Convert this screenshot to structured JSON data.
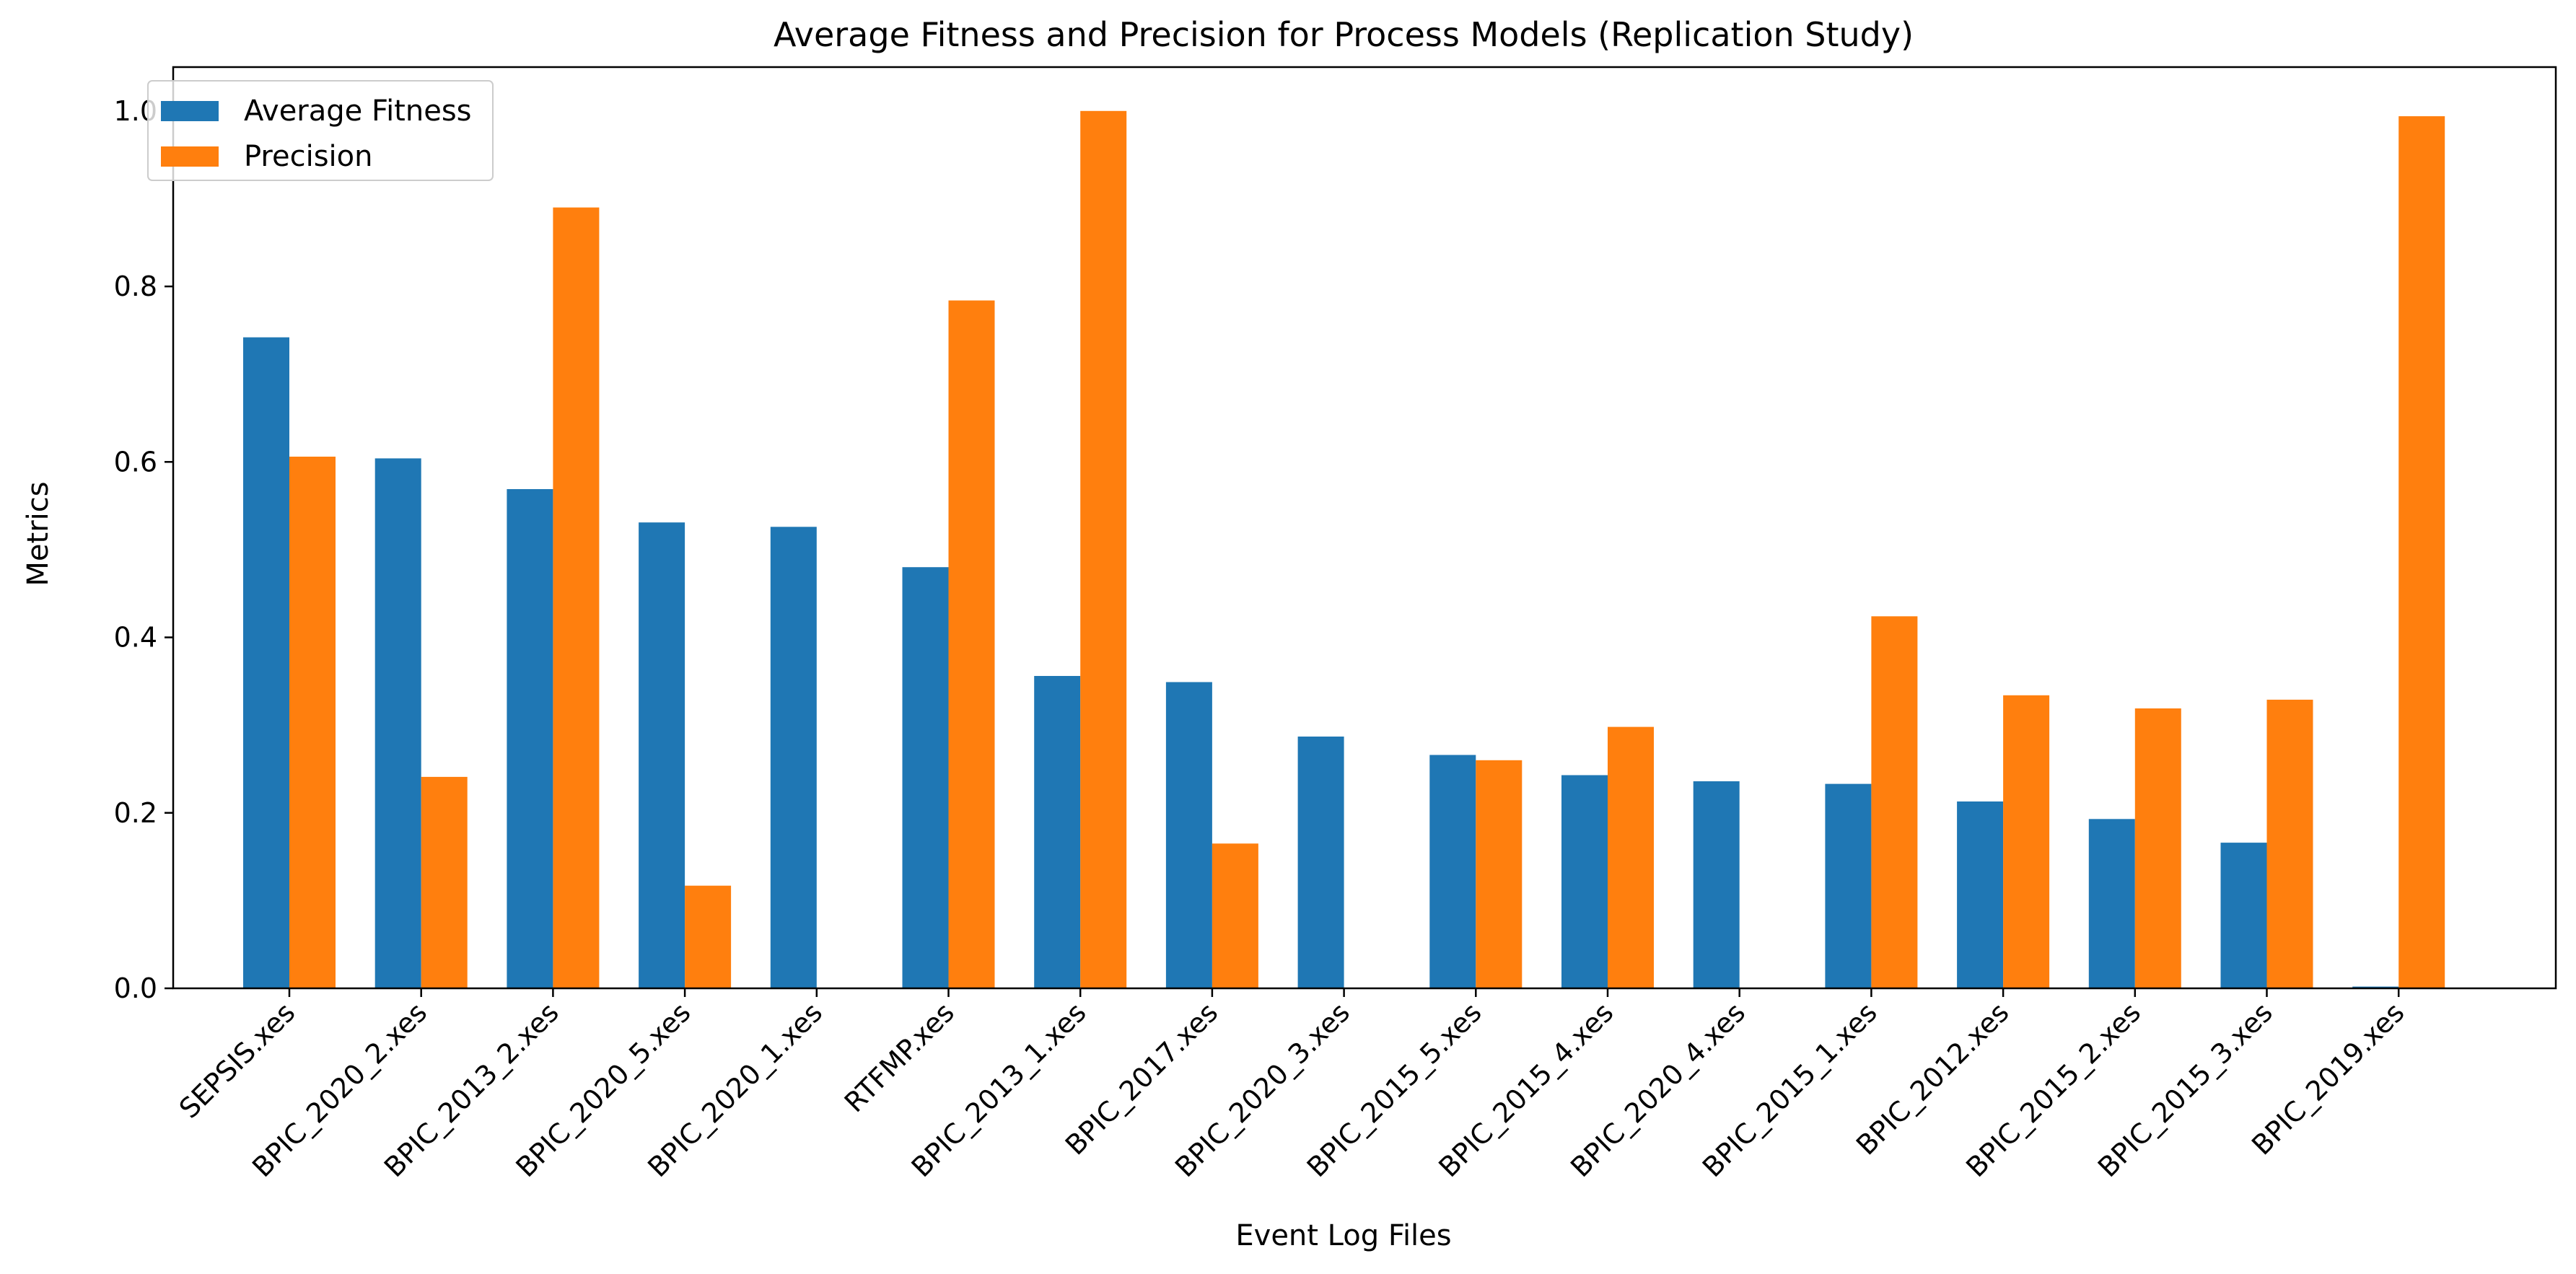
{
  "chart_data": {
    "type": "bar",
    "title": "Average Fitness and Precision for Process Models (Replication Study)",
    "xlabel": "Event Log Files",
    "ylabel": "Metrics",
    "ylim": [
      0,
      1.05
    ],
    "yticks": [
      "0.0",
      "0.2",
      "0.4",
      "0.6",
      "0.8",
      "1.0"
    ],
    "grid": false,
    "legend_position": "top-left",
    "categories": [
      "SEPSIS.xes",
      "BPIC_2020_2.xes",
      "BPIC_2013_2.xes",
      "BPIC_2020_5.xes",
      "BPIC_2020_1.xes",
      "RTFMP.xes",
      "BPIC_2013_1.xes",
      "BPIC_2017.xes",
      "BPIC_2020_3.xes",
      "BPIC_2015_5.xes",
      "BPIC_2015_4.xes",
      "BPIC_2020_4.xes",
      "BPIC_2015_1.xes",
      "BPIC_2012.xes",
      "BPIC_2015_2.xes",
      "BPIC_2015_3.xes",
      "BPIC_2019.xes"
    ],
    "series": [
      {
        "name": "Average Fitness",
        "color": "#1f77b4",
        "values": [
          0.742,
          0.604,
          0.569,
          0.531,
          0.526,
          0.48,
          0.356,
          0.349,
          0.287,
          0.266,
          0.243,
          0.236,
          0.233,
          0.213,
          0.193,
          0.166,
          0.002
        ]
      },
      {
        "name": "Precision",
        "color": "#ff7f0e",
        "values": [
          0.606,
          0.241,
          0.89,
          0.117,
          0.0,
          0.784,
          1.0,
          0.165,
          0.0,
          0.26,
          0.298,
          0.0,
          0.424,
          0.334,
          0.319,
          0.329,
          0.994
        ]
      }
    ]
  }
}
